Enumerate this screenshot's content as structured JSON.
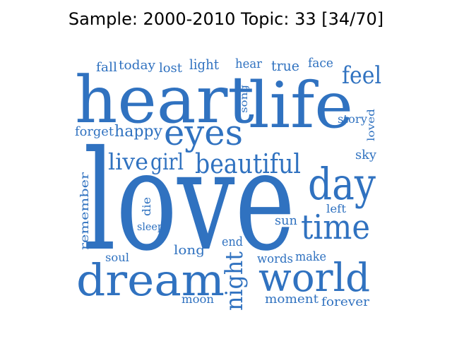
{
  "title": "Sample: 2000-2010 Topic: 33 [34/70]",
  "word_color": "#3072c0",
  "words": [
    {
      "text": "love"
    },
    {
      "text": "heart"
    },
    {
      "text": "life"
    },
    {
      "text": "dream"
    },
    {
      "text": "world"
    },
    {
      "text": "eyes"
    },
    {
      "text": "day"
    },
    {
      "text": "time"
    },
    {
      "text": "beautiful"
    },
    {
      "text": "night"
    },
    {
      "text": "feel"
    },
    {
      "text": "live"
    },
    {
      "text": "girl"
    },
    {
      "text": "happy"
    },
    {
      "text": "forget"
    },
    {
      "text": "light"
    },
    {
      "text": "true"
    },
    {
      "text": "fall"
    },
    {
      "text": "today"
    },
    {
      "text": "face"
    },
    {
      "text": "hear"
    },
    {
      "text": "lost"
    },
    {
      "text": "song"
    },
    {
      "text": "story"
    },
    {
      "text": "loved"
    },
    {
      "text": "sky"
    },
    {
      "text": "left"
    },
    {
      "text": "sun"
    },
    {
      "text": "remember"
    },
    {
      "text": "die"
    },
    {
      "text": "sleep"
    },
    {
      "text": "long"
    },
    {
      "text": "end"
    },
    {
      "text": "soul"
    },
    {
      "text": "words"
    },
    {
      "text": "make"
    },
    {
      "text": "moon"
    },
    {
      "text": "moment"
    },
    {
      "text": "forever"
    }
  ]
}
